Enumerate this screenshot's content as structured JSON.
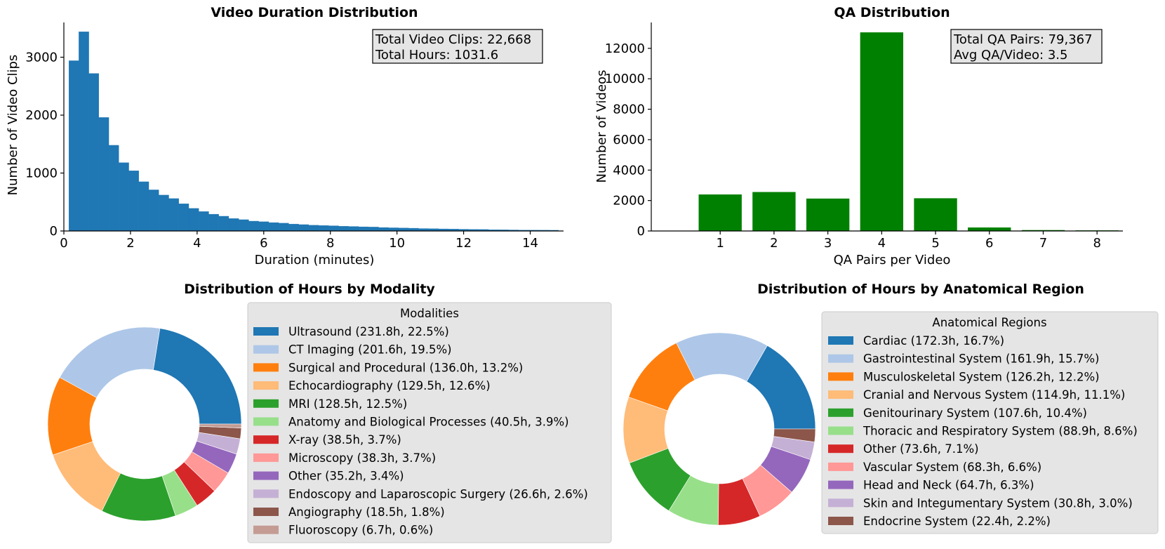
{
  "chart_data": [
    {
      "type": "bar",
      "subtype": "histogram",
      "title": "Video Duration Distribution",
      "xlabel": "Duration (minutes)",
      "ylabel": "Number of Video Clips",
      "xlim": [
        0,
        15
      ],
      "ylim": [
        0,
        3600
      ],
      "xticks": [
        0,
        2,
        4,
        6,
        8,
        10,
        12,
        14
      ],
      "yticks": [
        0,
        1000,
        2000,
        3000
      ],
      "bin_width": 0.3,
      "bin_start": 0.15,
      "values": [
        2940,
        3440,
        2720,
        1960,
        1480,
        1180,
        1040,
        850,
        710,
        620,
        560,
        470,
        390,
        335,
        290,
        255,
        215,
        195,
        170,
        160,
        145,
        135,
        120,
        110,
        100,
        95,
        90,
        82,
        78,
        72,
        68,
        60,
        55,
        52,
        48,
        42,
        40,
        36,
        34,
        30,
        28,
        26,
        22,
        20,
        18,
        16,
        15,
        14,
        13
      ],
      "color": "#1f77b4",
      "annotation": [
        "Total Video Clips: 22,668",
        "Total Hours: 1031.6"
      ]
    },
    {
      "type": "bar",
      "title": "QA Distribution",
      "xlabel": "QA Pairs per Video",
      "ylabel": "Number of Videos",
      "categories": [
        "1",
        "2",
        "3",
        "4",
        "5",
        "6",
        "7",
        "8"
      ],
      "values": [
        2400,
        2560,
        2130,
        13050,
        2150,
        230,
        60,
        40
      ],
      "ylim": [
        0,
        13700
      ],
      "yticks": [
        0,
        2000,
        4000,
        6000,
        8000,
        10000,
        12000
      ],
      "color": "#008000",
      "annotation": [
        "Total QA Pairs: 79,367",
        "Avg QA/Video: 3.5"
      ]
    },
    {
      "type": "pie",
      "donut": true,
      "title": "Distribution of Hours by Modality",
      "legend_title": "Modalities",
      "slices": [
        {
          "label": "Ultrasound (231.8h, 22.5%)",
          "value": 231.8,
          "color": "#1f77b4"
        },
        {
          "label": "CT Imaging (201.6h, 19.5%)",
          "value": 201.6,
          "color": "#aec7e8"
        },
        {
          "label": "Surgical and Procedural (136.0h, 13.2%)",
          "value": 136.0,
          "color": "#ff7f0e"
        },
        {
          "label": "Echocardiography (129.5h, 12.6%)",
          "value": 129.5,
          "color": "#ffbb78"
        },
        {
          "label": "MRI (128.5h, 12.5%)",
          "value": 128.5,
          "color": "#2ca02c"
        },
        {
          "label": "Anatomy and Biological Processes (40.5h, 3.9%)",
          "value": 40.5,
          "color": "#98df8a"
        },
        {
          "label": "X-ray (38.5h, 3.7%)",
          "value": 38.5,
          "color": "#d62728"
        },
        {
          "label": "Microscopy (38.3h, 3.7%)",
          "value": 38.3,
          "color": "#ff9896"
        },
        {
          "label": "Other (35.2h, 3.4%)",
          "value": 35.2,
          "color": "#9467bd"
        },
        {
          "label": "Endoscopy and Laparoscopic Surgery (26.6h, 2.6%)",
          "value": 26.6,
          "color": "#c5b0d5"
        },
        {
          "label": "Angiography (18.5h, 1.8%)",
          "value": 18.5,
          "color": "#8c564b"
        },
        {
          "label": "Fluoroscopy (6.7h, 0.6%)",
          "value": 6.7,
          "color": "#c49c94"
        }
      ]
    },
    {
      "type": "pie",
      "donut": true,
      "title": "Distribution of Hours by Anatomical Region",
      "legend_title": "Anatomical Regions",
      "slices": [
        {
          "label": "Cardiac (172.3h, 16.7%)",
          "value": 172.3,
          "color": "#1f77b4"
        },
        {
          "label": "Gastrointestinal System (161.9h, 15.7%)",
          "value": 161.9,
          "color": "#aec7e8"
        },
        {
          "label": "Musculoskeletal System (126.2h, 12.2%)",
          "value": 126.2,
          "color": "#ff7f0e"
        },
        {
          "label": "Cranial and Nervous System (114.9h, 11.1%)",
          "value": 114.9,
          "color": "#ffbb78"
        },
        {
          "label": "Genitourinary System (107.6h, 10.4%)",
          "value": 107.6,
          "color": "#2ca02c"
        },
        {
          "label": "Thoracic and Respiratory System (88.9h, 8.6%)",
          "value": 88.9,
          "color": "#98df8a"
        },
        {
          "label": "Other (73.6h, 7.1%)",
          "value": 73.6,
          "color": "#d62728"
        },
        {
          "label": "Vascular System (68.3h, 6.6%)",
          "value": 68.3,
          "color": "#ff9896"
        },
        {
          "label": "Head and Neck (64.7h, 6.3%)",
          "value": 64.7,
          "color": "#9467bd"
        },
        {
          "label": "Skin and Integumentary System (30.8h, 3.0%)",
          "value": 30.8,
          "color": "#c5b0d5"
        },
        {
          "label": "Endocrine System (22.4h, 2.2%)",
          "value": 22.4,
          "color": "#8c564b"
        }
      ]
    }
  ]
}
